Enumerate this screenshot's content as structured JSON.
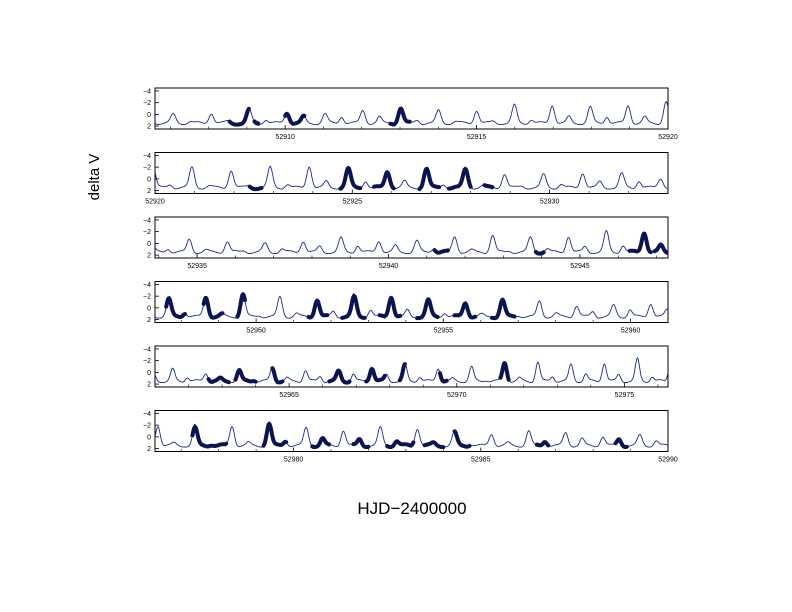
{
  "chart_data": {
    "type": "line",
    "xlabel": "HJD−2400000",
    "ylabel": "delta V",
    "y_inverted": true,
    "colors": {
      "model": "#1c2a8c",
      "observed": "#0b1450"
    },
    "y_ticks": [
      {
        "value": -4,
        "label": "−4"
      },
      {
        "value": -2,
        "label": "−2"
      },
      {
        "value": 0,
        "label": "0"
      },
      {
        "value": 2,
        "label": "2"
      }
    ],
    "panels": [
      {
        "xlim": [
          52906.6,
          52920
        ],
        "ylim": [
          -4.5,
          2.5
        ],
        "x_ticks": [
          52910,
          52915,
          52920
        ],
        "observed": [
          {
            "start": 52908.55,
            "end": 52909.05
          },
          {
            "start": 52909.2,
            "end": 52909.3
          },
          {
            "start": 52910.0,
            "end": 52910.5
          },
          {
            "start": 52912.75,
            "end": 52913.25
          }
        ]
      },
      {
        "xlim": [
          52920,
          52933
        ],
        "ylim": [
          -4.5,
          2.5
        ],
        "x_ticks": [
          52920,
          52925,
          52930
        ],
        "observed": [
          {
            "start": 52922.4,
            "end": 52922.7
          },
          {
            "start": 52924.7,
            "end": 52925.2
          },
          {
            "start": 52925.55,
            "end": 52926.05
          },
          {
            "start": 52926.7,
            "end": 52927.2
          },
          {
            "start": 52927.45,
            "end": 52928.0
          },
          {
            "start": 52928.35,
            "end": 52928.55
          }
        ]
      },
      {
        "xlim": [
          52933.9,
          52947.3
        ],
        "ylim": [
          -4.5,
          2.5
        ],
        "x_ticks": [
          52935,
          52940,
          52945
        ],
        "observed": [
          {
            "start": 52941.2,
            "end": 52941.55
          },
          {
            "start": 52943.85,
            "end": 52944.05
          },
          {
            "start": 52946.3,
            "end": 52946.85
          },
          {
            "start": 52946.95,
            "end": 52947.3
          }
        ]
      },
      {
        "xlim": [
          52947.3,
          52961
        ],
        "ylim": [
          -4.5,
          2.5
        ],
        "x_ticks": [
          52950,
          52955,
          52960
        ],
        "observed": [
          {
            "start": 52947.6,
            "end": 52948.1
          },
          {
            "start": 52948.6,
            "end": 52949.1
          },
          {
            "start": 52949.5,
            "end": 52949.7
          },
          {
            "start": 52951.4,
            "end": 52951.9
          },
          {
            "start": 52952.3,
            "end": 52952.9
          },
          {
            "start": 52953.3,
            "end": 52953.85
          },
          {
            "start": 52954.3,
            "end": 52954.85
          },
          {
            "start": 52955.3,
            "end": 52955.85
          },
          {
            "start": 52956.3,
            "end": 52956.9
          }
        ]
      },
      {
        "xlim": [
          52961,
          52976.3
        ],
        "ylim": [
          -4.5,
          2.5
        ],
        "x_ticks": [
          52965,
          52970,
          52975
        ],
        "observed": [
          {
            "start": 52962.6,
            "end": 52963.2
          },
          {
            "start": 52963.4,
            "end": 52964.0
          },
          {
            "start": 52964.5,
            "end": 52964.8
          },
          {
            "start": 52966.2,
            "end": 52966.8
          },
          {
            "start": 52967.3,
            "end": 52967.85
          },
          {
            "start": 52968.3,
            "end": 52968.45
          },
          {
            "start": 52969.5,
            "end": 52969.7
          },
          {
            "start": 52971.3,
            "end": 52971.55
          }
        ]
      },
      {
        "xlim": [
          52976.3,
          52990
        ],
        "ylim": [
          -4.5,
          2.5
        ],
        "x_ticks": [
          52980,
          52985,
          52990
        ],
        "observed": [
          {
            "start": 52977.3,
            "end": 52978.2
          },
          {
            "start": 52979.2,
            "end": 52979.8
          },
          {
            "start": 52980.5,
            "end": 52980.95
          },
          {
            "start": 52981.6,
            "end": 52982.0
          },
          {
            "start": 52982.5,
            "end": 52983.2
          },
          {
            "start": 52983.5,
            "end": 52984.0
          },
          {
            "start": 52984.3,
            "end": 52984.7
          },
          {
            "start": 52986.5,
            "end": 52986.8
          },
          {
            "start": 52988.6,
            "end": 52988.9
          }
        ]
      }
    ]
  }
}
